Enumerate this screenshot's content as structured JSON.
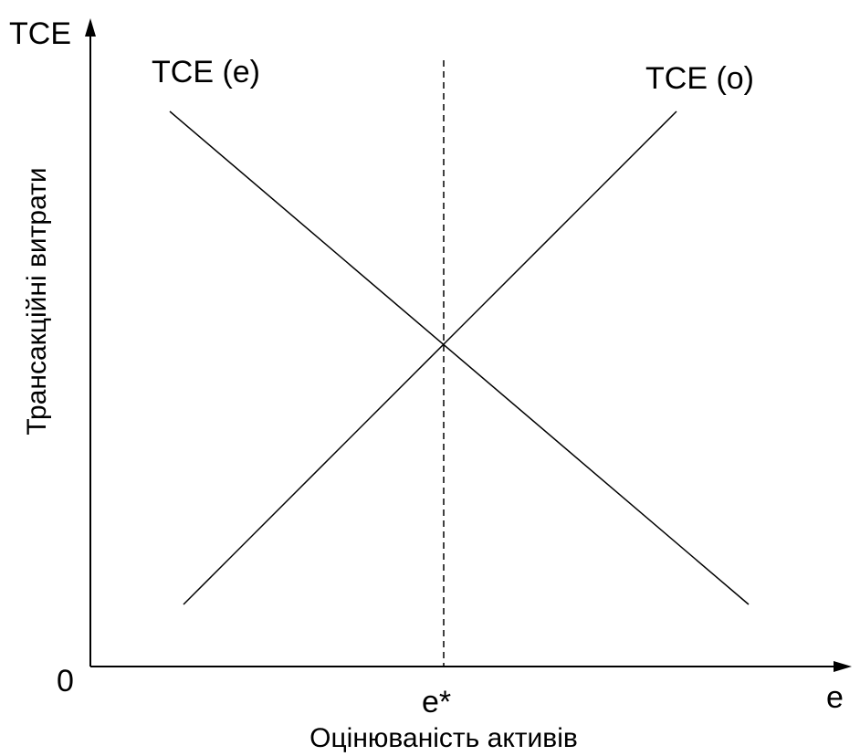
{
  "diagram": {
    "y_axis_symbol": "TCE",
    "x_axis_symbol": "e",
    "origin_label": "0",
    "y_axis_title": "Трансакційні витрати",
    "x_axis_title": "Оцінюваність активів",
    "equilibrium_label": "e*",
    "curve_descending_label": "TCE (e)",
    "curve_ascending_label": "TCE (o)"
  }
}
